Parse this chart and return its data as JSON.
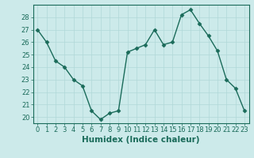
{
  "x": [
    0,
    1,
    2,
    3,
    4,
    5,
    6,
    7,
    8,
    9,
    10,
    11,
    12,
    13,
    14,
    15,
    16,
    17,
    18,
    19,
    20,
    21,
    22,
    23
  ],
  "y": [
    27,
    26,
    24.5,
    24,
    23,
    22.5,
    20.5,
    19.8,
    20.3,
    20.5,
    25.2,
    25.5,
    25.8,
    27,
    25.8,
    26,
    28.2,
    28.6,
    27.5,
    26.5,
    25.3,
    23,
    22.3,
    20.5
  ],
  "line_color": "#1a6b5a",
  "marker": "D",
  "marker_size": 2.5,
  "bg_color": "#cceaea",
  "grid_color": "#b0d8d8",
  "tick_color": "#1a6b5a",
  "label_color": "#1a6b5a",
  "xlabel": "Humidex (Indice chaleur)",
  "ylim": [
    19.5,
    29
  ],
  "xlim": [
    -0.5,
    23.5
  ],
  "yticks": [
    20,
    21,
    22,
    23,
    24,
    25,
    26,
    27,
    28
  ],
  "xticks": [
    0,
    1,
    2,
    3,
    4,
    5,
    6,
    7,
    8,
    9,
    10,
    11,
    12,
    13,
    14,
    15,
    16,
    17,
    18,
    19,
    20,
    21,
    22,
    23
  ],
  "tick_font_size": 6,
  "xlabel_font_size": 7.5
}
